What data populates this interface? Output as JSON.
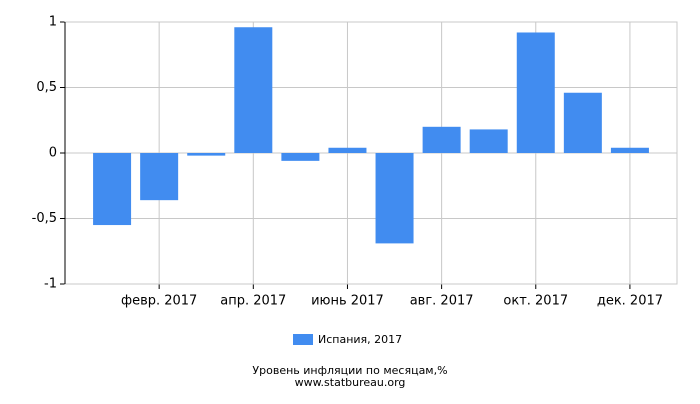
{
  "chart_data": {
    "type": "bar",
    "title": "Уровень инфляции по месяцам,%",
    "source": "www.statbureau.org",
    "categories": [
      null,
      "февр. 2017",
      null,
      "апр. 2017",
      null,
      "июнь 2017",
      null,
      "авг. 2017",
      null,
      "окт. 2017",
      null,
      "дек. 2017"
    ],
    "series": [
      {
        "name": "Испания, 2017",
        "color": "#418cf0",
        "values": [
          -0.55,
          -0.36,
          -0.02,
          0.96,
          -0.06,
          0.04,
          -0.69,
          0.2,
          0.18,
          0.92,
          0.46,
          0.04
        ]
      }
    ],
    "ylim": [
      -1,
      1
    ],
    "yticks": [
      -1,
      {
        "value": -0.5,
        "label": "-0,5"
      },
      0,
      {
        "value": 0.5,
        "label": "0,5"
      },
      1
    ],
    "grid": true
  }
}
